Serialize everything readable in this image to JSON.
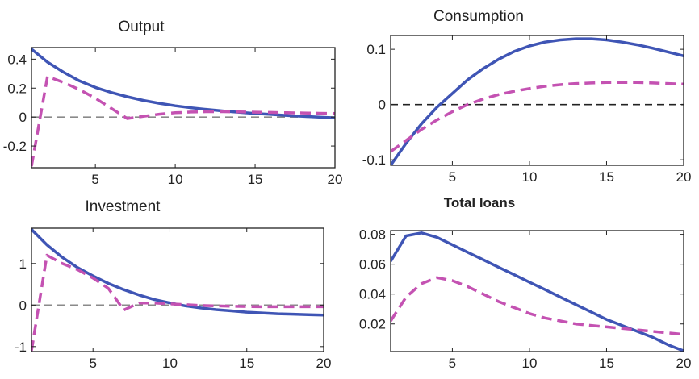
{
  "colors": {
    "series_a": "#3f55b5",
    "series_b": "#c452b2",
    "zero_line": "#222222",
    "axis": "#222222"
  },
  "chart_data": [
    {
      "type": "line",
      "title": "Output",
      "title_bold": false,
      "xlim": [
        1,
        20
      ],
      "ylim": [
        -0.35,
        0.48
      ],
      "xticks": [
        5,
        10,
        15,
        20
      ],
      "yticks": [
        0.4,
        0.2,
        0,
        -0.2
      ],
      "ytick_labels": [
        "0.4",
        "0.2",
        "0",
        "-0.2"
      ],
      "zero_line": "gray-dashed",
      "series": [
        {
          "style": "solid",
          "color": "#3f55b5",
          "x": [
            1,
            2,
            3,
            4,
            5,
            6,
            7,
            8,
            9,
            10,
            11,
            12,
            13,
            14,
            15,
            16,
            17,
            18,
            19,
            20
          ],
          "y": [
            0.47,
            0.38,
            0.31,
            0.25,
            0.205,
            0.17,
            0.14,
            0.115,
            0.095,
            0.078,
            0.064,
            0.052,
            0.042,
            0.033,
            0.025,
            0.018,
            0.011,
            0.005,
            0.0,
            -0.005
          ]
        },
        {
          "style": "dashed",
          "color": "#c452b2",
          "x": [
            1,
            2,
            3,
            4,
            5,
            6,
            7,
            8,
            9,
            10,
            11,
            12,
            13,
            14,
            15,
            16,
            17,
            18,
            19,
            20
          ],
          "y": [
            -0.34,
            0.28,
            0.24,
            0.19,
            0.13,
            0.06,
            -0.01,
            0.005,
            0.02,
            0.03,
            0.035,
            0.037,
            0.037,
            0.036,
            0.034,
            0.032,
            0.03,
            0.028,
            0.026,
            0.025
          ]
        }
      ]
    },
    {
      "type": "line",
      "title": "Consumption",
      "title_bold": false,
      "xlim": [
        1,
        20
      ],
      "ylim": [
        -0.11,
        0.125
      ],
      "xticks": [
        5,
        10,
        15,
        20
      ],
      "yticks": [
        0.1,
        0,
        -0.1
      ],
      "ytick_labels": [
        "0.1",
        "0",
        "-0.1"
      ],
      "zero_line": "black-dashed",
      "series": [
        {
          "style": "solid",
          "color": "#3f55b5",
          "x": [
            1,
            2,
            3,
            4,
            5,
            6,
            7,
            8,
            9,
            10,
            11,
            12,
            13,
            14,
            15,
            16,
            17,
            18,
            19,
            20
          ],
          "y": [
            -0.11,
            -0.07,
            -0.035,
            -0.005,
            0.02,
            0.045,
            0.065,
            0.082,
            0.096,
            0.106,
            0.113,
            0.117,
            0.119,
            0.119,
            0.117,
            0.113,
            0.108,
            0.102,
            0.095,
            0.088
          ]
        },
        {
          "style": "dashed",
          "color": "#c452b2",
          "x": [
            1,
            2,
            3,
            4,
            5,
            6,
            7,
            8,
            9,
            10,
            11,
            12,
            13,
            14,
            15,
            16,
            17,
            18,
            19,
            20
          ],
          "y": [
            -0.085,
            -0.065,
            -0.045,
            -0.028,
            -0.013,
            0.0,
            0.01,
            0.018,
            0.024,
            0.029,
            0.033,
            0.036,
            0.038,
            0.039,
            0.04,
            0.04,
            0.04,
            0.039,
            0.038,
            0.037
          ]
        }
      ]
    },
    {
      "type": "line",
      "title": "Investment",
      "title_bold": false,
      "xlim": [
        1,
        20
      ],
      "ylim": [
        -1.12,
        1.85
      ],
      "xticks": [
        5,
        10,
        15,
        20
      ],
      "yticks": [
        1,
        0,
        -1
      ],
      "ytick_labels": [
        "1",
        "0",
        "-1"
      ],
      "zero_line": "gray-dashed",
      "series": [
        {
          "style": "solid",
          "color": "#3f55b5",
          "x": [
            1,
            2,
            3,
            4,
            5,
            6,
            7,
            8,
            9,
            10,
            11,
            12,
            13,
            14,
            15,
            16,
            17,
            18,
            19,
            20
          ],
          "y": [
            1.82,
            1.45,
            1.15,
            0.9,
            0.7,
            0.52,
            0.37,
            0.24,
            0.13,
            0.05,
            -0.02,
            -0.07,
            -0.11,
            -0.14,
            -0.17,
            -0.19,
            -0.21,
            -0.22,
            -0.23,
            -0.24
          ]
        },
        {
          "style": "dashed",
          "color": "#c452b2",
          "x": [
            1,
            2,
            3,
            4,
            5,
            6,
            7,
            8,
            9,
            10,
            11,
            12,
            13,
            14,
            15,
            16,
            17,
            18,
            19,
            20
          ],
          "y": [
            -1.1,
            1.2,
            1.0,
            0.85,
            0.65,
            0.4,
            -0.12,
            0.05,
            0.05,
            0.03,
            0.01,
            -0.01,
            -0.02,
            -0.03,
            -0.035,
            -0.04,
            -0.04,
            -0.04,
            -0.04,
            -0.04
          ]
        }
      ]
    },
    {
      "type": "line",
      "title": "Total loans",
      "title_bold": true,
      "xlim": [
        1,
        20
      ],
      "ylim": [
        0.0015,
        0.0825
      ],
      "xticks": [
        5,
        10,
        15,
        20
      ],
      "yticks": [
        0.08,
        0.06,
        0.04,
        0.02
      ],
      "ytick_labels": [
        "0.08",
        "0.06",
        "0.04",
        "0.02"
      ],
      "zero_line": "none",
      "series": [
        {
          "style": "solid",
          "color": "#3f55b5",
          "x": [
            1,
            2,
            3,
            4,
            5,
            6,
            7,
            8,
            9,
            10,
            11,
            12,
            13,
            14,
            15,
            16,
            17,
            18,
            19,
            20
          ],
          "y": [
            0.062,
            0.079,
            0.081,
            0.078,
            0.073,
            0.068,
            0.063,
            0.058,
            0.053,
            0.048,
            0.043,
            0.038,
            0.033,
            0.028,
            0.023,
            0.019,
            0.015,
            0.011,
            0.006,
            0.002
          ]
        },
        {
          "style": "dashed",
          "color": "#c452b2",
          "x": [
            1,
            2,
            3,
            4,
            5,
            6,
            7,
            8,
            9,
            10,
            11,
            12,
            13,
            14,
            15,
            16,
            17,
            18,
            19,
            20
          ],
          "y": [
            0.022,
            0.038,
            0.047,
            0.051,
            0.049,
            0.045,
            0.04,
            0.035,
            0.031,
            0.027,
            0.024,
            0.022,
            0.02,
            0.019,
            0.018,
            0.017,
            0.016,
            0.015,
            0.014,
            0.013
          ]
        }
      ]
    }
  ]
}
